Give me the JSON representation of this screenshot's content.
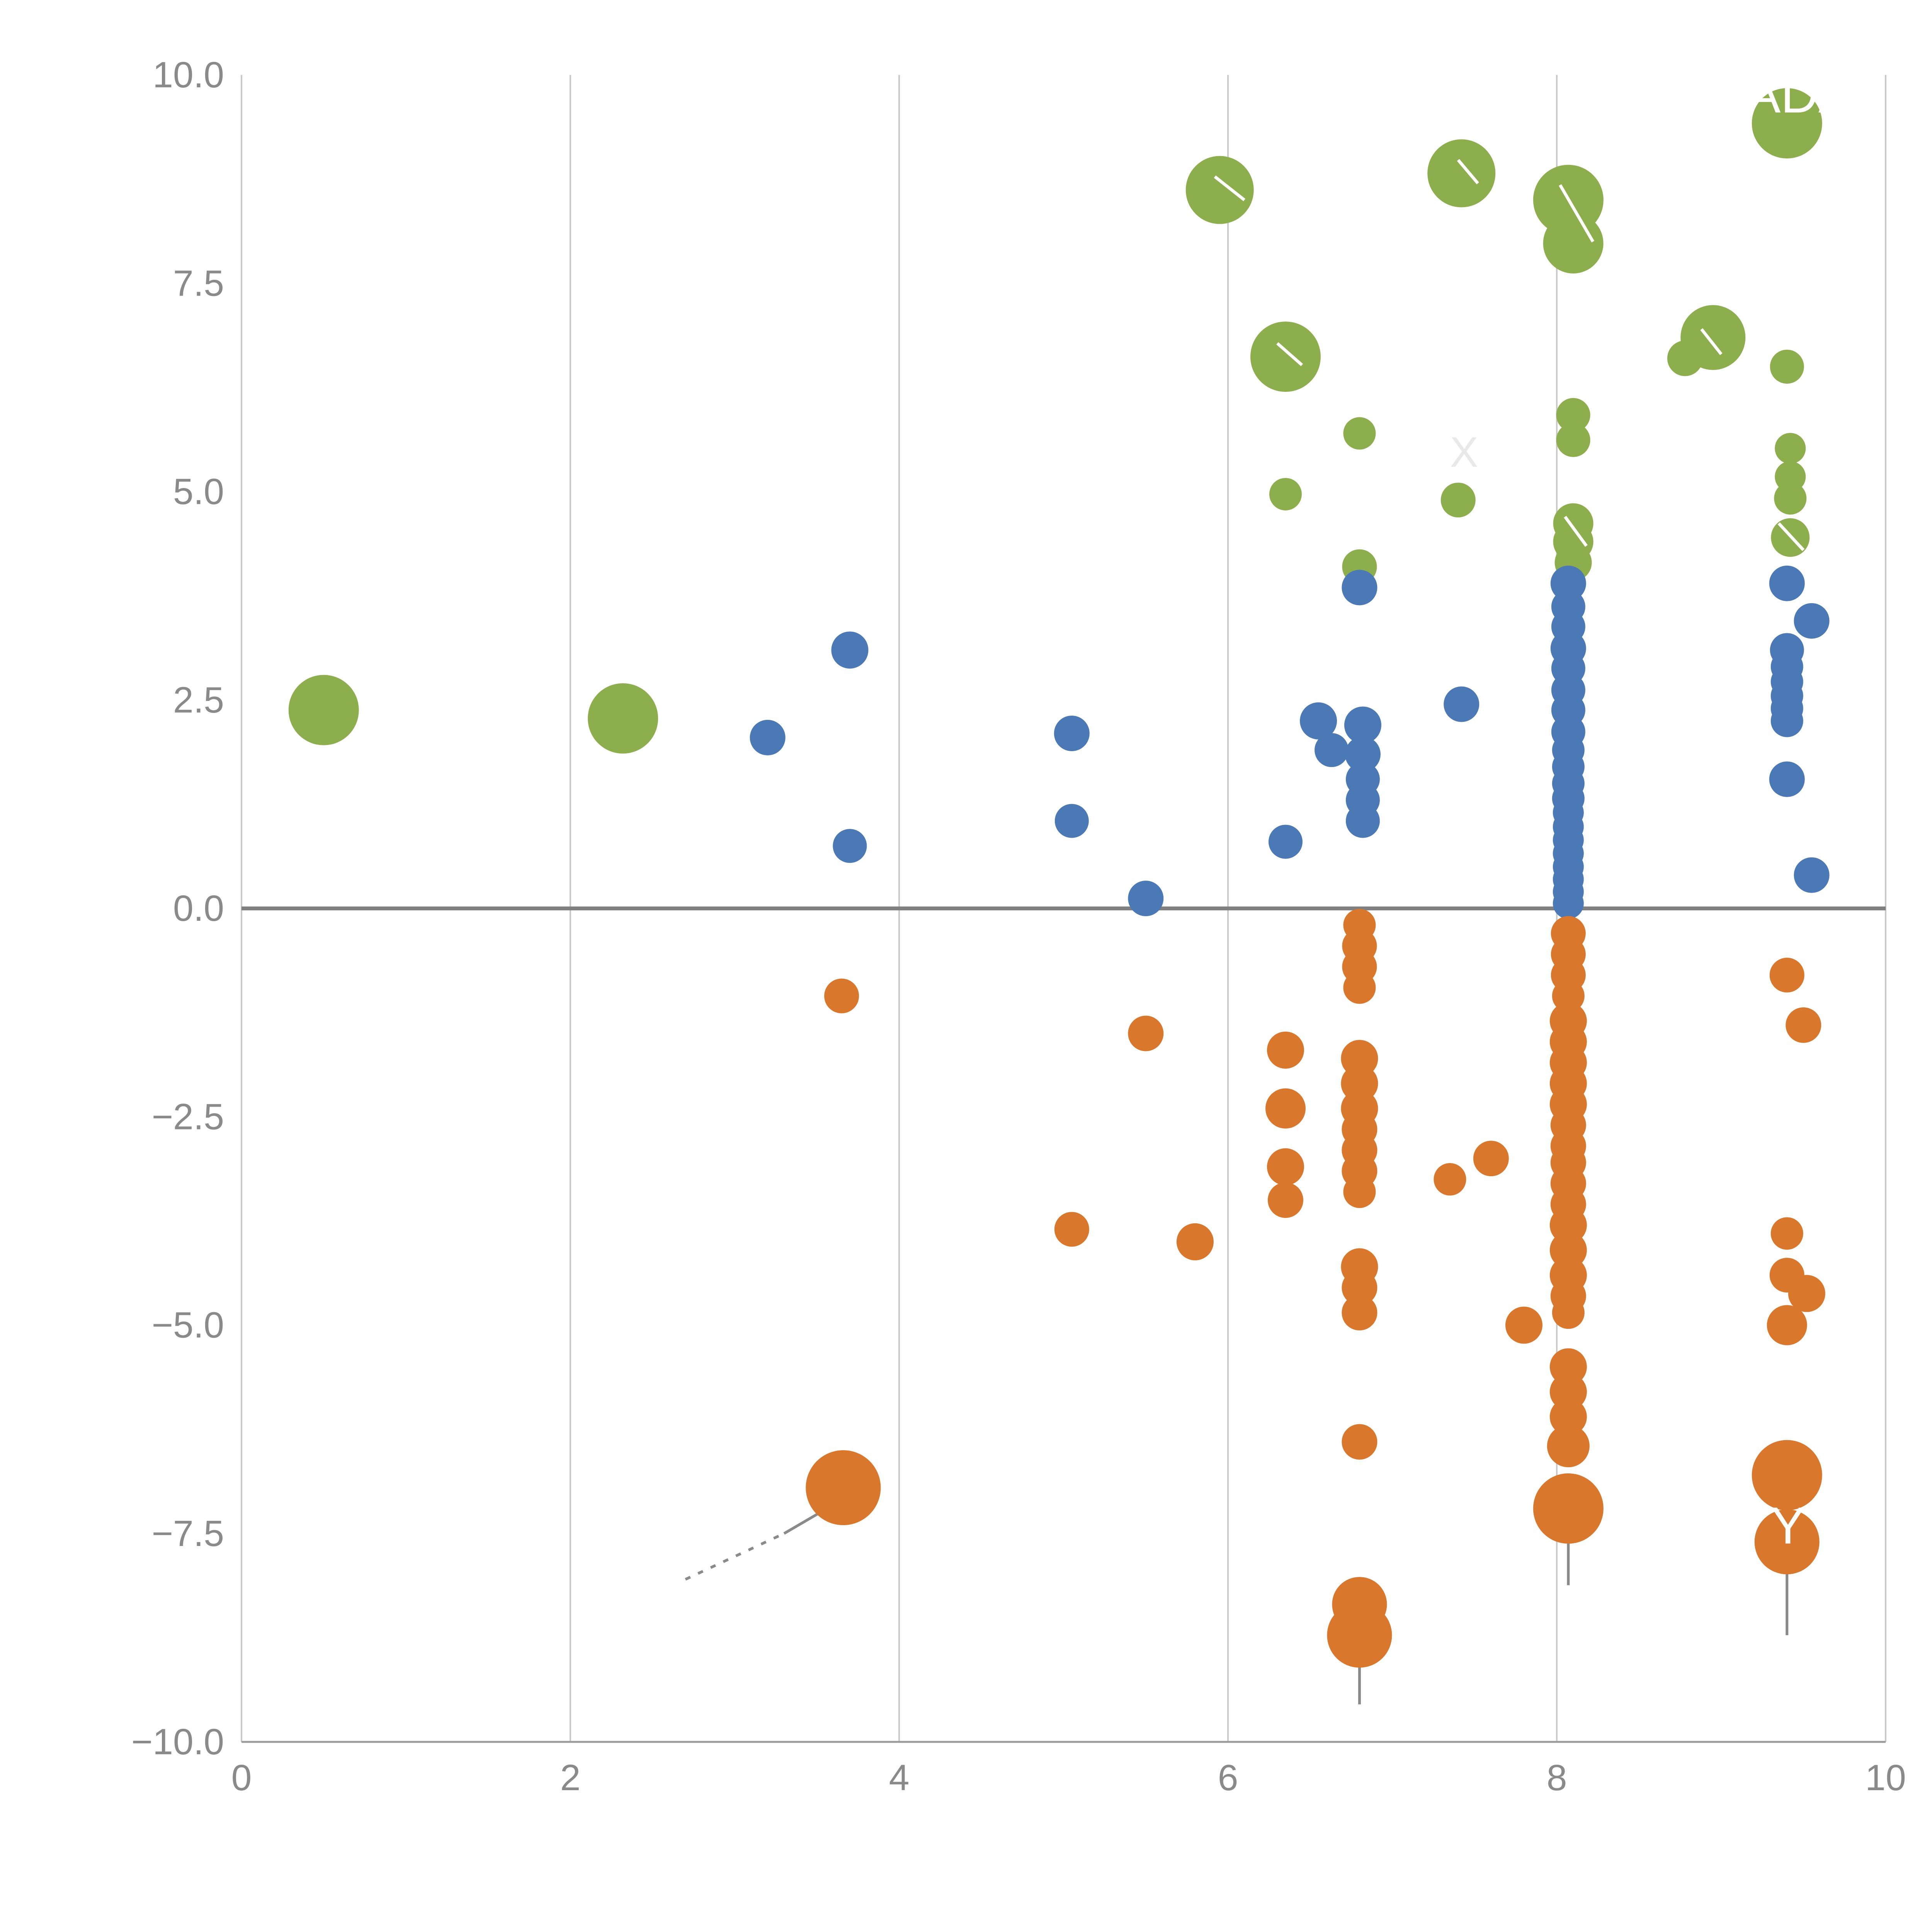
{
  "chart_data": {
    "type": "scatter",
    "title": "",
    "xlabel": "",
    "ylabel": "",
    "xlim": [
      0,
      10
    ],
    "ylim": [
      -10,
      10
    ],
    "xticks": [
      0,
      2,
      4,
      6,
      8,
      10
    ],
    "xtick_labels": [
      "0",
      "2",
      "4",
      "6",
      "8",
      "10"
    ],
    "yticks": [
      -10,
      -7.5,
      -5,
      -2.5,
      0,
      2.5,
      5,
      7.5,
      10
    ],
    "ytick_labels": [
      "−10.0",
      "−7.5",
      "−5.0",
      "−2.5",
      "0.0",
      "2.5",
      "5.0",
      "7.5",
      "10.0"
    ],
    "grid": "vertical-only",
    "grid_color": "#c9c9c9",
    "zero_line_color": "#808080",
    "spine_color": "#9a9a9a",
    "tick_label_color": "#8a8a8a",
    "legend": "none",
    "series": [
      {
        "name": "green",
        "color": "#8dae4d",
        "points": [
          [
            0.5,
            2.38,
            91
          ],
          [
            2.32,
            2.28,
            91
          ],
          [
            5.95,
            8.62,
            88
          ],
          [
            6.35,
            6.62,
            91
          ],
          [
            6.35,
            4.97,
            42
          ],
          [
            6.8,
            5.7,
            42
          ],
          [
            6.8,
            4.1,
            45
          ],
          [
            7.42,
            8.82,
            88
          ],
          [
            7.4,
            4.9,
            45
          ],
          [
            8.07,
            8.5,
            91
          ],
          [
            8.1,
            7.98,
            78
          ],
          [
            8.1,
            5.92,
            44
          ],
          [
            8.1,
            5.62,
            44
          ],
          [
            8.1,
            4.62,
            52
          ],
          [
            8.1,
            4.4,
            52
          ],
          [
            8.1,
            4.15,
            48
          ],
          [
            8.78,
            6.6,
            46
          ],
          [
            8.95,
            6.85,
            84
          ],
          [
            9.4,
            9.42,
            91
          ],
          [
            9.4,
            6.5,
            44
          ],
          [
            9.42,
            5.52,
            40
          ],
          [
            9.42,
            5.18,
            40
          ],
          [
            9.42,
            4.92,
            42
          ],
          [
            9.42,
            4.45,
            50
          ]
        ]
      },
      {
        "name": "blue",
        "color": "#4a79b5",
        "points": [
          [
            3.2,
            2.05,
            46
          ],
          [
            3.7,
            3.1,
            48
          ],
          [
            3.7,
            0.75,
            44
          ],
          [
            5.05,
            2.1,
            46
          ],
          [
            5.05,
            1.05,
            44
          ],
          [
            5.5,
            0.12,
            46
          ],
          [
            6.35,
            0.8,
            44
          ],
          [
            6.55,
            2.25,
            48
          ],
          [
            6.63,
            1.9,
            44
          ],
          [
            6.8,
            3.85,
            46
          ],
          [
            6.82,
            2.2,
            48
          ],
          [
            6.82,
            1.85,
            46
          ],
          [
            6.82,
            1.55,
            44
          ],
          [
            6.82,
            1.3,
            44
          ],
          [
            6.82,
            1.05,
            44
          ],
          [
            7.42,
            2.45,
            46
          ],
          [
            8.07,
            3.9,
            46
          ],
          [
            8.07,
            3.62,
            44
          ],
          [
            8.07,
            3.38,
            44
          ],
          [
            8.07,
            3.12,
            46
          ],
          [
            8.07,
            2.88,
            44
          ],
          [
            8.07,
            2.62,
            44
          ],
          [
            8.07,
            2.38,
            44
          ],
          [
            8.07,
            2.12,
            44
          ],
          [
            8.07,
            1.9,
            42
          ],
          [
            8.07,
            1.7,
            42
          ],
          [
            8.07,
            1.5,
            42
          ],
          [
            8.07,
            1.32,
            42
          ],
          [
            8.07,
            1.15,
            40
          ],
          [
            8.07,
            0.98,
            40
          ],
          [
            8.07,
            0.82,
            40
          ],
          [
            8.07,
            0.66,
            40
          ],
          [
            8.07,
            0.5,
            40
          ],
          [
            8.07,
            0.35,
            40
          ],
          [
            8.07,
            0.2,
            40
          ],
          [
            8.07,
            0.06,
            40
          ],
          [
            9.4,
            3.9,
            46
          ],
          [
            9.55,
            3.45,
            46
          ],
          [
            9.4,
            3.1,
            44
          ],
          [
            9.4,
            2.9,
            42
          ],
          [
            9.4,
            2.72,
            42
          ],
          [
            9.4,
            2.55,
            42
          ],
          [
            9.4,
            2.4,
            42
          ],
          [
            9.4,
            2.25,
            42
          ],
          [
            9.4,
            1.55,
            46
          ],
          [
            9.55,
            0.4,
            46
          ]
        ]
      },
      {
        "name": "orange",
        "color": "#d9782d",
        "points": [
          [
            3.65,
            -1.05,
            45
          ],
          [
            3.66,
            -6.95,
            97
          ],
          [
            5.05,
            -3.85,
            45
          ],
          [
            5.5,
            -1.5,
            46
          ],
          [
            5.8,
            -4.0,
            48
          ],
          [
            6.35,
            -1.7,
            48
          ],
          [
            6.35,
            -2.4,
            52
          ],
          [
            6.35,
            -3.1,
            48
          ],
          [
            6.35,
            -3.5,
            46
          ],
          [
            6.8,
            -0.2,
            42
          ],
          [
            6.8,
            -0.45,
            45
          ],
          [
            6.8,
            -0.7,
            45
          ],
          [
            6.8,
            -0.95,
            42
          ],
          [
            6.8,
            -1.8,
            48
          ],
          [
            6.8,
            -2.1,
            48
          ],
          [
            6.8,
            -2.4,
            48
          ],
          [
            6.8,
            -2.65,
            46
          ],
          [
            6.8,
            -2.9,
            46
          ],
          [
            6.8,
            -3.15,
            46
          ],
          [
            6.8,
            -3.4,
            42
          ],
          [
            6.8,
            -4.3,
            48
          ],
          [
            6.8,
            -4.55,
            46
          ],
          [
            6.8,
            -4.85,
            46
          ],
          [
            6.8,
            -6.4,
            46
          ],
          [
            6.8,
            -8.35,
            71
          ],
          [
            6.8,
            -8.72,
            84
          ],
          [
            7.35,
            -3.25,
            42
          ],
          [
            7.6,
            -3.0,
            46
          ],
          [
            7.8,
            -5.0,
            48
          ],
          [
            8.07,
            -0.3,
            45
          ],
          [
            8.07,
            -0.55,
            45
          ],
          [
            8.07,
            -0.8,
            45
          ],
          [
            8.07,
            -1.05,
            42
          ],
          [
            8.07,
            -1.35,
            48
          ],
          [
            8.07,
            -1.6,
            48
          ],
          [
            8.07,
            -1.85,
            48
          ],
          [
            8.07,
            -2.1,
            48
          ],
          [
            8.07,
            -2.35,
            48
          ],
          [
            8.07,
            -2.6,
            46
          ],
          [
            8.07,
            -2.85,
            46
          ],
          [
            8.07,
            -3.05,
            46
          ],
          [
            8.07,
            -3.3,
            46
          ],
          [
            8.07,
            -3.55,
            46
          ],
          [
            8.07,
            -3.8,
            48
          ],
          [
            8.07,
            -4.1,
            48
          ],
          [
            8.07,
            -4.4,
            48
          ],
          [
            8.07,
            -4.65,
            46
          ],
          [
            8.07,
            -4.85,
            42
          ],
          [
            8.07,
            -5.5,
            48
          ],
          [
            8.07,
            -5.8,
            48
          ],
          [
            8.07,
            -6.1,
            48
          ],
          [
            8.07,
            -6.45,
            55
          ],
          [
            8.07,
            -7.2,
            91
          ],
          [
            9.4,
            -0.8,
            45
          ],
          [
            9.5,
            -1.4,
            46
          ],
          [
            9.4,
            -3.9,
            42
          ],
          [
            9.4,
            -4.4,
            45
          ],
          [
            9.52,
            -4.62,
            48
          ],
          [
            9.4,
            -5.0,
            52
          ],
          [
            9.4,
            -6.8,
            91
          ],
          [
            9.4,
            -7.6,
            84
          ]
        ]
      }
    ],
    "annotations": {
      "labels": [
        {
          "text": "ADA",
          "x": 9.15,
          "y": 9.55,
          "color": "#ffffff",
          "size": 135,
          "anchor": "start"
        },
        {
          "text": "X",
          "x": 7.35,
          "y": 5.3,
          "color": "#e9e9e9",
          "size": 110,
          "anchor": "start"
        },
        {
          "text": "Y",
          "x": 9.3,
          "y": -7.62,
          "color": "#ffffff",
          "size": 135,
          "anchor": "start"
        }
      ],
      "gray_lines": [
        {
          "x1": 6.8,
          "y1": -8.8,
          "x2": 6.8,
          "y2": -9.55,
          "dash": null
        },
        {
          "x1": 8.07,
          "y1": -7.3,
          "x2": 8.07,
          "y2": -8.12,
          "dash": null
        },
        {
          "x1": 9.4,
          "y1": -6.95,
          "x2": 9.4,
          "y2": -8.72,
          "dash": null
        },
        {
          "x1": 2.7,
          "y1": -8.05,
          "x2": 3.3,
          "y2": -7.5,
          "dash": "14 22"
        },
        {
          "x1": 3.3,
          "y1": -7.5,
          "x2": 3.63,
          "y2": -7.12,
          "dash": null
        }
      ],
      "white_lines": [
        {
          "x1": 5.92,
          "y1": 8.78,
          "x2": 6.1,
          "y2": 8.5
        },
        {
          "x1": 7.4,
          "y1": 8.98,
          "x2": 7.52,
          "y2": 8.7
        },
        {
          "x1": 8.02,
          "y1": 8.68,
          "x2": 8.22,
          "y2": 8.0
        },
        {
          "x1": 6.3,
          "y1": 6.78,
          "x2": 6.45,
          "y2": 6.52
        },
        {
          "x1": 8.88,
          "y1": 6.95,
          "x2": 9.0,
          "y2": 6.65
        },
        {
          "x1": 8.05,
          "y1": 4.7,
          "x2": 8.18,
          "y2": 4.35
        },
        {
          "x1": 9.35,
          "y1": 4.62,
          "x2": 9.5,
          "y2": 4.3
        }
      ]
    }
  }
}
